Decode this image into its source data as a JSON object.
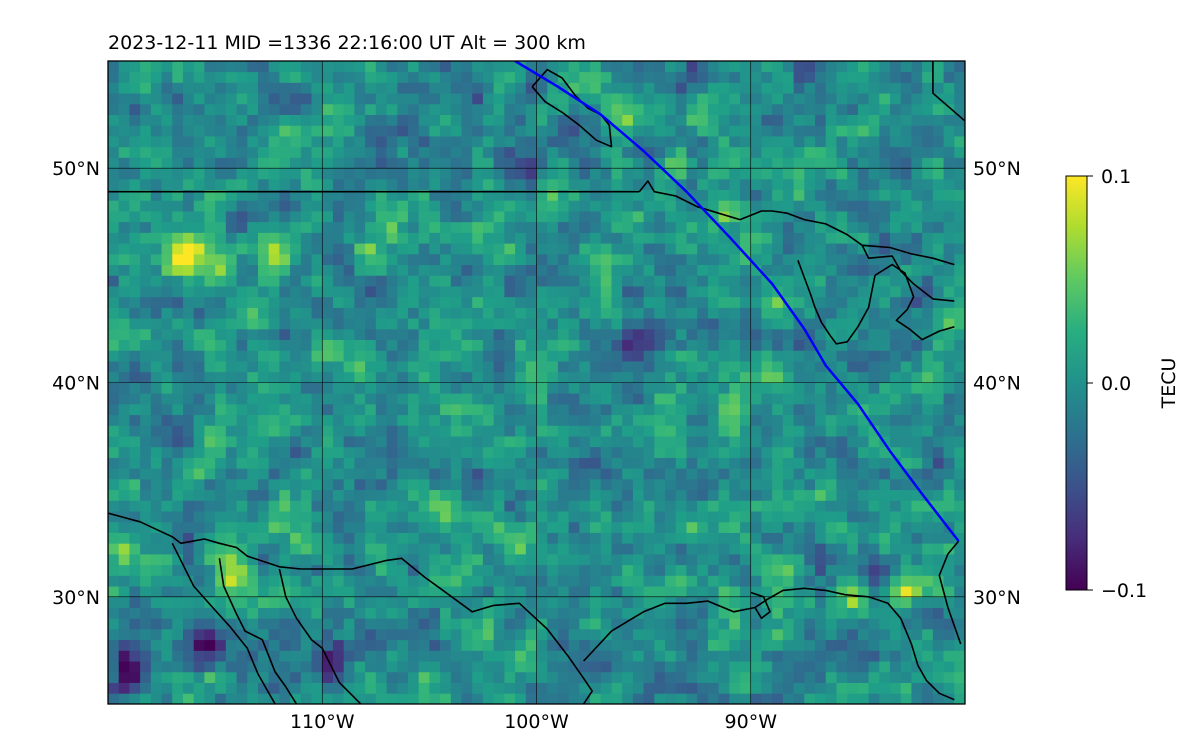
{
  "title": "2023-12-11  MID =1336    22:16:00  UT  Alt = 300 km",
  "chart_data": {
    "type": "heatmap",
    "title": "2023-12-11  MID =1336    22:16:00  UT  Alt = 300 km",
    "projection": "lat-lon map",
    "xlim": [
      -120,
      -80
    ],
    "ylim": [
      25,
      55
    ],
    "x_ticks": [
      {
        "value": -110,
        "label": "110°W"
      },
      {
        "value": -100,
        "label": "100°W"
      },
      {
        "value": -90,
        "label": "90°W"
      }
    ],
    "y_ticks": [
      {
        "value": 30,
        "label": "30°N"
      },
      {
        "value": 40,
        "label": "40°N"
      },
      {
        "value": 50,
        "label": "50°N"
      }
    ],
    "gridlines": true,
    "colormap": "viridis",
    "colorbar": {
      "label": "TECU",
      "min": -0.1,
      "max": 0.1,
      "ticks": [
        {
          "value": 0.1,
          "label": "0.1"
        },
        {
          "value": 0.0,
          "label": "0.0"
        },
        {
          "value": -0.1,
          "label": "−0.1"
        }
      ]
    },
    "grid_resolution_deg": 0.5,
    "field_description": "Differential TEC perturbation, values mostly between -0.05 and 0.05 TECU with small-scale structure",
    "hotspots": [
      {
        "lon": -116.5,
        "lat": 45.8,
        "value": 0.09
      },
      {
        "lon": -115.0,
        "lat": 45.6,
        "value": 0.09
      },
      {
        "lon": -112.0,
        "lat": 45.7,
        "value": 0.08
      },
      {
        "lon": -83.0,
        "lat": 30.2,
        "value": 0.09
      },
      {
        "lon": -85.5,
        "lat": 30.1,
        "value": 0.08
      },
      {
        "lon": -119.5,
        "lat": 32.0,
        "value": 0.07
      },
      {
        "lon": -114.5,
        "lat": 31.0,
        "value": 0.07
      }
    ],
    "coldspots": [
      {
        "lon": -119.0,
        "lat": 26.5,
        "value": -0.1
      },
      {
        "lon": -115.5,
        "lat": 27.5,
        "value": -0.08
      },
      {
        "lon": -109.5,
        "lat": 27.2,
        "value": -0.09
      },
      {
        "lon": -100.5,
        "lat": 50.2,
        "value": -0.08
      },
      {
        "lon": -95.5,
        "lat": 41.5,
        "value": -0.07
      },
      {
        "lon": -84.0,
        "lat": 31.0,
        "value": -0.06
      }
    ],
    "series": [
      {
        "type": "line",
        "color": "#0000ff",
        "x": [
          -101.0,
          -99.0,
          -97.0,
          -95.0,
          -93.0,
          -91.0,
          -89.0,
          -87.5,
          -86.5,
          -85.0,
          -83.5,
          -82.0,
          -80.3
        ],
        "y": [
          55.0,
          53.8,
          52.5,
          50.8,
          48.9,
          46.8,
          44.6,
          42.5,
          40.8,
          39.0,
          36.8,
          34.8,
          32.6
        ]
      }
    ],
    "coastlines": [
      {
        "x": [
          -120,
          -115.8,
          -112
        ],
        "y": [
          48.9,
          48.9,
          48.9
        ]
      },
      {
        "x": [
          -112,
          -104,
          -95.2
        ],
        "y": [
          48.9,
          48.9,
          48.9
        ]
      },
      {
        "x": [
          -95.2,
          -94.8,
          -94.5,
          -93.5,
          -92.5,
          -91.5,
          -90.5,
          -89.5,
          -89.0,
          -88.3,
          -87.5,
          -86.5,
          -85.5,
          -84.8,
          -83.5,
          -82.5,
          -81.5,
          -80.5
        ],
        "y": [
          48.9,
          49.4,
          48.9,
          48.7,
          48.2,
          47.9,
          47.6,
          48.0,
          48.0,
          47.9,
          47.6,
          47.4,
          46.9,
          46.4,
          46.3,
          46.0,
          45.8,
          45.5
        ]
      },
      {
        "x": [
          -87.8,
          -87.5,
          -87.2,
          -87.0,
          -86.7,
          -86.3,
          -86.0,
          -85.5,
          -85.0,
          -84.5,
          -84.2
        ],
        "y": [
          45.7,
          44.9,
          44.1,
          43.5,
          42.8,
          42.2,
          41.8,
          41.9,
          42.6,
          43.5,
          45.0
        ]
      },
      {
        "x": [
          -84.2,
          -83.4,
          -82.8,
          -82.4,
          -82.7,
          -83.2,
          -82.6,
          -82.0,
          -81.2,
          -80.5
        ],
        "y": [
          45.0,
          45.5,
          45.1,
          44.0,
          43.4,
          42.9,
          42.5,
          42.0,
          42.4,
          42.6
        ]
      },
      {
        "x": [
          -84.8,
          -84.5,
          -83.4,
          -83.0,
          -82.4,
          -81.5,
          -80.5
        ],
        "y": [
          46.4,
          45.8,
          45.9,
          45.2,
          44.6,
          43.9,
          43.8
        ]
      },
      {
        "x": [
          -100.2,
          -99.5,
          -98.8,
          -98.2,
          -97.6,
          -97.0,
          -96.6,
          -96.5,
          -97.2,
          -98.0,
          -98.8,
          -99.6,
          -100.2
        ],
        "y": [
          53.8,
          54.6,
          54.2,
          53.4,
          52.8,
          52.5,
          52.0,
          51.0,
          51.3,
          52.0,
          52.6,
          53.1,
          53.8
        ]
      },
      {
        "x": [
          -81.5,
          -81.5,
          -80.0
        ],
        "y": [
          55.0,
          53.5,
          52.2
        ]
      },
      {
        "x": [
          -80.3,
          -80.8,
          -81.2,
          -80.8,
          -80.2
        ],
        "y": [
          32.6,
          32.0,
          31.0,
          29.5,
          27.8
        ]
      },
      {
        "x": [
          -120.0,
          -118.5,
          -117.0,
          -116.6,
          -115.5,
          -114.8,
          -114.0,
          -113.5,
          -112.0,
          -111.0,
          -110.0,
          -108.6,
          -107.0,
          -106.3,
          -105.2,
          -104.5,
          -103.0,
          -102.0,
          -100.8,
          -99.5,
          -98.5,
          -97.8,
          -97.4,
          -97.6,
          -97.8
        ],
        "y": [
          33.9,
          33.5,
          32.8,
          32.5,
          32.7,
          32.5,
          32.3,
          31.9,
          31.4,
          31.3,
          31.3,
          31.3,
          31.7,
          31.8,
          30.9,
          30.4,
          29.3,
          29.6,
          29.7,
          28.5,
          27.2,
          26.2,
          25.6,
          25.3,
          25.0
        ]
      },
      {
        "x": [
          -117.0,
          -116.0,
          -115.2,
          -114.3,
          -113.5,
          -113.0,
          -112.2
        ],
        "y": [
          32.5,
          30.5,
          29.6,
          28.6,
          27.6,
          26.4,
          25.0
        ]
      },
      {
        "x": [
          -114.8,
          -114.6,
          -114.0,
          -113.6,
          -112.8,
          -112.2,
          -111.7,
          -111.2
        ],
        "y": [
          31.8,
          30.5,
          29.2,
          28.4,
          28.0,
          26.5,
          25.8,
          25.0
        ]
      },
      {
        "x": [
          -112.0,
          -111.7,
          -111.2,
          -110.5,
          -110.0,
          -109.2,
          -108.2
        ],
        "y": [
          31.3,
          30.0,
          29.0,
          28.0,
          27.6,
          26.0,
          25.0
        ]
      },
      {
        "x": [
          -97.8,
          -96.5,
          -95.0,
          -94.0,
          -93.0,
          -92.0,
          -90.8,
          -89.8,
          -89.2,
          -88.5,
          -87.5,
          -86.5,
          -85.6,
          -84.5,
          -83.6,
          -83.0,
          -82.5,
          -82.2
        ],
        "y": [
          27.0,
          28.4,
          29.3,
          29.7,
          29.7,
          29.8,
          29.3,
          29.5,
          29.9,
          30.3,
          30.4,
          30.3,
          30.1,
          30.0,
          29.7,
          29.0,
          27.8,
          26.8
        ]
      },
      {
        "x": [
          -89.8,
          -89.5,
          -89.1,
          -89.4,
          -90.0
        ],
        "y": [
          29.5,
          29.0,
          29.3,
          30.0,
          30.2
        ]
      },
      {
        "x": [
          -82.2,
          -81.8,
          -81.2,
          -80.5
        ],
        "y": [
          26.8,
          26.1,
          25.5,
          25.2
        ]
      }
    ]
  }
}
